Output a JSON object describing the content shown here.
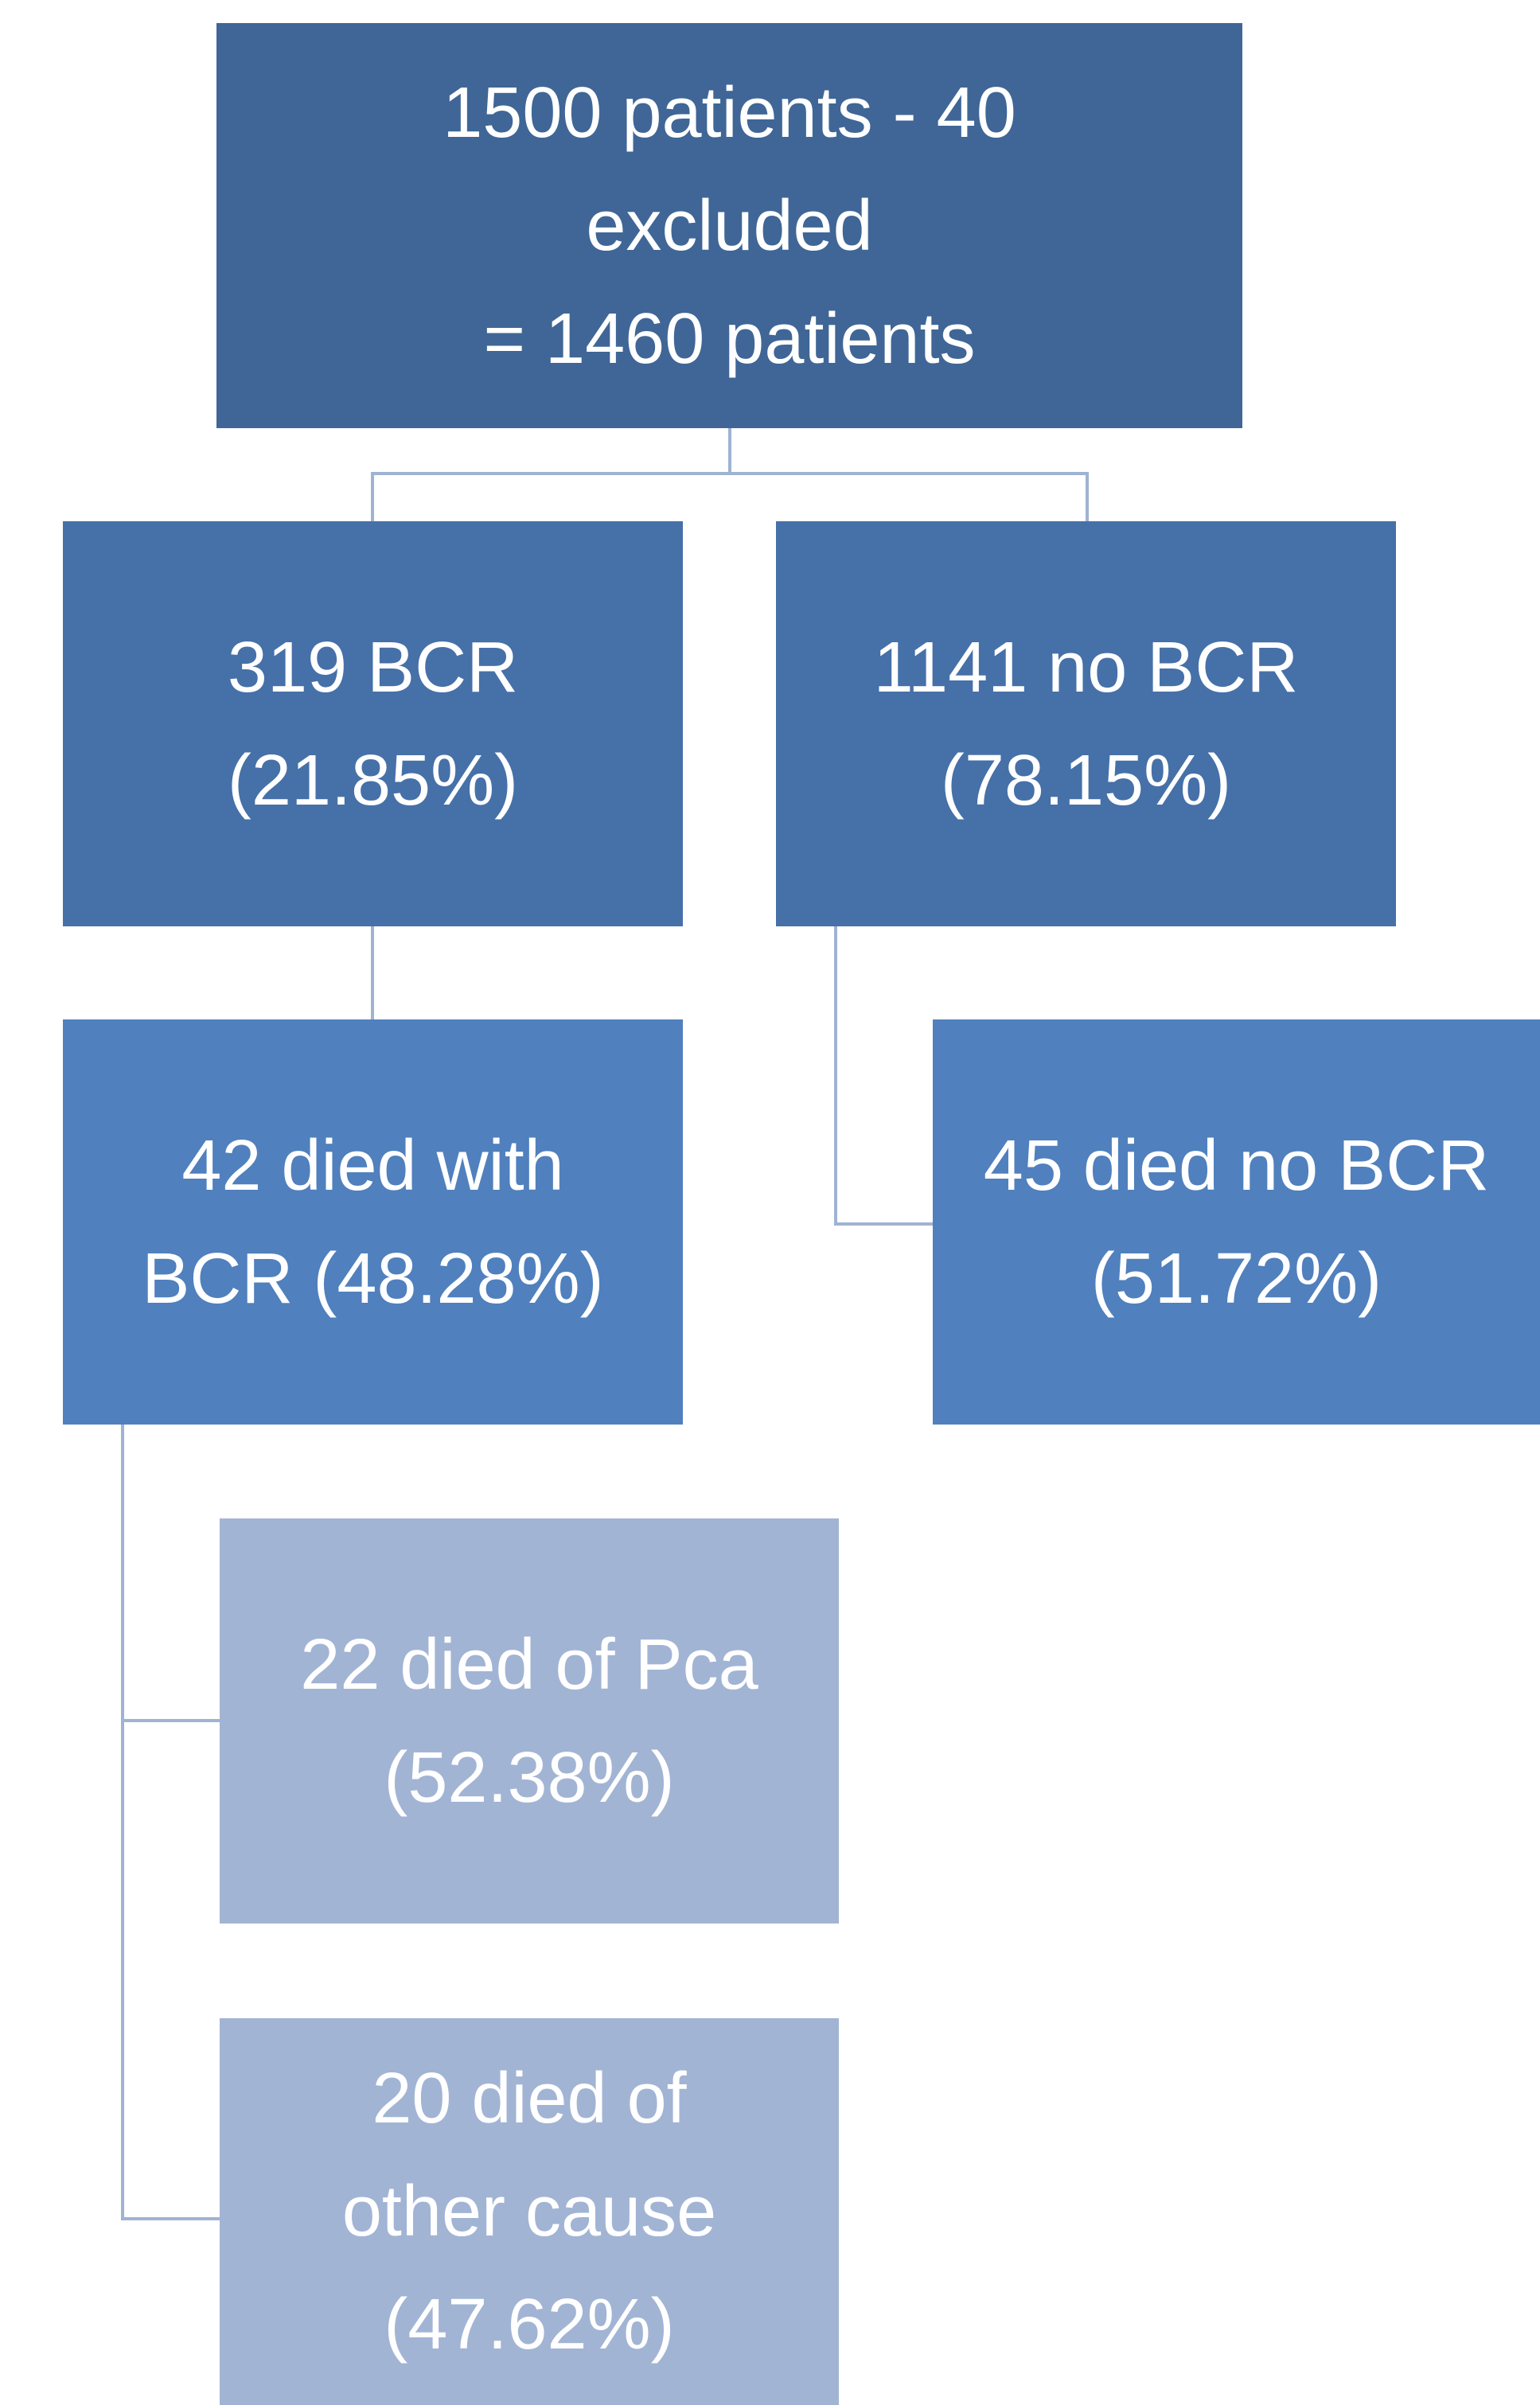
{
  "nodes": [
    {
      "lines": [
        "1500 patients - 40",
        "excluded",
        "= 1460 patients"
      ]
    },
    {
      "lines": [
        "319 BCR",
        "(21.85%)"
      ]
    },
    {
      "lines": [
        "1141 no BCR",
        "(78.15%)"
      ]
    },
    {
      "lines": [
        "42 died with",
        "BCR (48.28%)"
      ]
    },
    {
      "lines": [
        "45 died no BCR",
        "(51.72%)"
      ]
    },
    {
      "lines": [
        "22 died of Pca",
        "(52.38%)"
      ]
    },
    {
      "lines": [
        "20 died of",
        "other cause",
        "(47.62%)"
      ]
    }
  ]
}
